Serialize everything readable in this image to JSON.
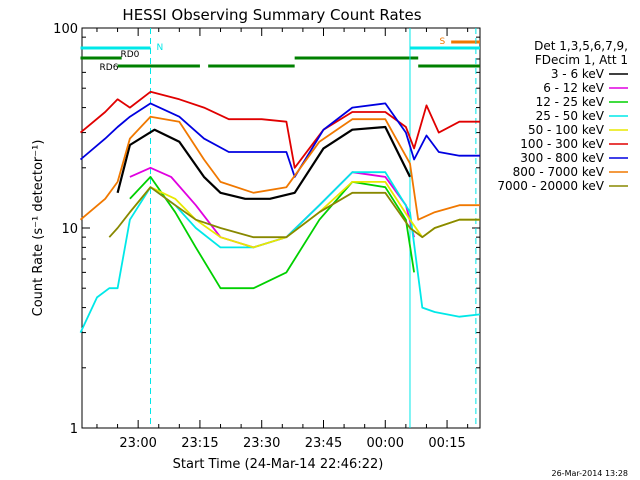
{
  "chart_data": {
    "type": "line",
    "title": "HESSI Observing Summary Count Rates",
    "xlabel": "Start Time (24-Mar-14 22:46:22)",
    "ylabel": "Count Rate (s⁻¹ detector⁻¹)",
    "y_scale": "log",
    "ylim": [
      1,
      100
    ],
    "x_range": [
      "22:46:22",
      "00:23:00"
    ],
    "x_ticks": [
      "23:00",
      "23:15",
      "23:30",
      "23:45",
      "00:00",
      "00:15"
    ],
    "y_ticks": [
      "1",
      "10",
      "100"
    ],
    "grid": false,
    "legend_position": "right",
    "legend_header": [
      "Det 1,3,5,6,7,9,",
      "FDecim 1, Att 1"
    ],
    "series": [
      {
        "name": "3 - 6 keV",
        "color": "#000000",
        "points": [
          [
            "22:46",
            0
          ],
          [
            "22:52",
            0
          ],
          [
            "22:55",
            15
          ],
          [
            "22:58",
            26
          ],
          [
            "23:04",
            31
          ],
          [
            "23:10",
            27
          ],
          [
            "23:16",
            18
          ],
          [
            "23:20",
            15
          ],
          [
            "23:26",
            14
          ],
          [
            "23:32",
            14
          ],
          [
            "23:38",
            15
          ],
          [
            "23:45",
            25
          ],
          [
            "23:52",
            31
          ],
          [
            "00:00",
            32
          ],
          [
            "00:06",
            18
          ],
          [
            "00:08",
            0
          ]
        ]
      },
      {
        "name": "6 - 12 keV",
        "color": "#e000e0",
        "points": [
          [
            "22:58",
            18
          ],
          [
            "23:03",
            20
          ],
          [
            "23:08",
            18
          ],
          [
            "23:14",
            13
          ],
          [
            "23:20",
            9
          ],
          [
            "23:28",
            8
          ],
          [
            "23:36",
            9
          ],
          [
            "23:44",
            13
          ],
          [
            "23:52",
            19
          ],
          [
            "00:00",
            18
          ],
          [
            "00:05",
            13
          ],
          [
            "00:07",
            9
          ]
        ]
      },
      {
        "name": "12 - 25 keV",
        "color": "#00d000",
        "points": [
          [
            "22:58",
            14
          ],
          [
            "23:03",
            18
          ],
          [
            "23:09",
            12
          ],
          [
            "23:14",
            8
          ],
          [
            "23:20",
            5
          ],
          [
            "23:28",
            5
          ],
          [
            "23:36",
            6
          ],
          [
            "23:44",
            11
          ],
          [
            "23:52",
            17
          ],
          [
            "00:00",
            16
          ],
          [
            "00:05",
            11
          ],
          [
            "00:07",
            6
          ]
        ]
      },
      {
        "name": "25 - 50 keV",
        "color": "#00e8e8",
        "points": [
          [
            "22:46",
            3
          ],
          [
            "22:50",
            4.5
          ],
          [
            "22:53",
            5
          ],
          [
            "22:55",
            5
          ],
          [
            "22:58",
            11
          ],
          [
            "23:03",
            16
          ],
          [
            "23:09",
            13
          ],
          [
            "23:14",
            10
          ],
          [
            "23:20",
            8
          ],
          [
            "23:28",
            8
          ],
          [
            "23:36",
            9
          ],
          [
            "23:44",
            13
          ],
          [
            "23:52",
            19
          ],
          [
            "00:00",
            19
          ],
          [
            "00:06",
            12
          ],
          [
            "00:09",
            4
          ],
          [
            "00:12",
            3.8
          ],
          [
            "00:18",
            3.6
          ],
          [
            "00:23",
            3.7
          ]
        ]
      },
      {
        "name": "50 - 100 keV",
        "color": "#e8e800",
        "points": [
          [
            "22:58",
            12
          ],
          [
            "23:03",
            16
          ],
          [
            "23:09",
            14
          ],
          [
            "23:14",
            11
          ],
          [
            "23:20",
            9
          ],
          [
            "23:28",
            8
          ],
          [
            "23:36",
            9
          ],
          [
            "23:44",
            12
          ],
          [
            "23:52",
            17
          ],
          [
            "00:00",
            17
          ],
          [
            "00:06",
            11
          ],
          [
            "00:09",
            9
          ],
          [
            "00:12",
            10
          ],
          [
            "00:18",
            11
          ],
          [
            "00:23",
            11
          ]
        ]
      },
      {
        "name": "100 - 300 keV",
        "color": "#e00000",
        "points": [
          [
            "22:46",
            30
          ],
          [
            "22:52",
            38
          ],
          [
            "22:55",
            44
          ],
          [
            "22:58",
            40
          ],
          [
            "23:03",
            48
          ],
          [
            "23:10",
            44
          ],
          [
            "23:16",
            40
          ],
          [
            "23:22",
            35
          ],
          [
            "23:30",
            35
          ],
          [
            "23:36",
            34
          ],
          [
            "23:38",
            20
          ],
          [
            "23:45",
            31
          ],
          [
            "23:52",
            38
          ],
          [
            "00:00",
            38
          ],
          [
            "00:05",
            32
          ],
          [
            "00:07",
            25
          ],
          [
            "00:10",
            41
          ],
          [
            "00:13",
            30
          ],
          [
            "00:18",
            34
          ],
          [
            "00:23",
            34
          ]
        ]
      },
      {
        "name": "300 - 800 keV",
        "color": "#0000e0",
        "points": [
          [
            "22:46",
            22
          ],
          [
            "22:52",
            28
          ],
          [
            "22:55",
            32
          ],
          [
            "22:58",
            36
          ],
          [
            "23:03",
            42
          ],
          [
            "23:10",
            36
          ],
          [
            "23:16",
            28
          ],
          [
            "23:22",
            24
          ],
          [
            "23:30",
            24
          ],
          [
            "23:36",
            24
          ],
          [
            "23:38",
            18
          ],
          [
            "23:45",
            31
          ],
          [
            "23:52",
            40
          ],
          [
            "00:00",
            42
          ],
          [
            "00:05",
            30
          ],
          [
            "00:07",
            22
          ],
          [
            "00:10",
            29
          ],
          [
            "00:13",
            24
          ],
          [
            "00:18",
            23
          ],
          [
            "00:23",
            23
          ]
        ]
      },
      {
        "name": "800 - 7000 keV",
        "color": "#f07800",
        "points": [
          [
            "22:46",
            11
          ],
          [
            "22:52",
            14
          ],
          [
            "22:55",
            17
          ],
          [
            "22:58",
            28
          ],
          [
            "23:03",
            36
          ],
          [
            "23:10",
            34
          ],
          [
            "23:16",
            22
          ],
          [
            "23:20",
            17
          ],
          [
            "23:28",
            15
          ],
          [
            "23:36",
            16
          ],
          [
            "23:44",
            27
          ],
          [
            "23:52",
            35
          ],
          [
            "00:00",
            35
          ],
          [
            "00:06",
            21
          ],
          [
            "00:08",
            11
          ],
          [
            "00:12",
            12
          ],
          [
            "00:18",
            13
          ],
          [
            "00:23",
            13
          ]
        ]
      },
      {
        "name": "7000 - 20000 keV",
        "color": "#888800",
        "points": [
          [
            "22:53",
            9
          ],
          [
            "22:55",
            10
          ],
          [
            "22:58",
            12
          ],
          [
            "23:03",
            16
          ],
          [
            "23:09",
            13
          ],
          [
            "23:14",
            11
          ],
          [
            "23:20",
            10
          ],
          [
            "23:28",
            9
          ],
          [
            "23:36",
            9
          ],
          [
            "23:44",
            12
          ],
          [
            "23:52",
            15
          ],
          [
            "00:00",
            15
          ],
          [
            "00:06",
            10
          ],
          [
            "00:09",
            9
          ],
          [
            "00:12",
            10
          ],
          [
            "00:18",
            11
          ],
          [
            "00:23",
            11
          ]
        ]
      }
    ],
    "flags": [
      {
        "label": "N",
        "color": "#00e8e8",
        "start": "22:46",
        "end": "23:03"
      },
      {
        "label": "RD0",
        "color": "#008000",
        "start": "22:46",
        "end": "22:56"
      },
      {
        "label": "RD6",
        "color": "#008000",
        "start": "22:55",
        "end": "23:15"
      },
      {
        "label": "",
        "color": "#008000",
        "start": "23:17",
        "end": "23:38"
      },
      {
        "label": "",
        "color": "#008000",
        "start": "23:38",
        "end": "00:08"
      },
      {
        "label": "",
        "color": "#008000",
        "start": "00:08",
        "end": "00:23"
      },
      {
        "label": "",
        "color": "#00e8e8",
        "start": "00:06",
        "end": "00:23"
      },
      {
        "label": "S",
        "color": "#f07800",
        "start": "00:16",
        "end": "00:23"
      }
    ],
    "markers": [
      {
        "time": "23:03",
        "color": "#00e8e8",
        "style": "dashed"
      },
      {
        "time": "00:06",
        "color": "#00e8e8",
        "style": "solid"
      },
      {
        "time": "00:22",
        "color": "#00e8e8",
        "style": "dashed"
      }
    ],
    "footer_date": "26-Mar-2014 13:28"
  }
}
